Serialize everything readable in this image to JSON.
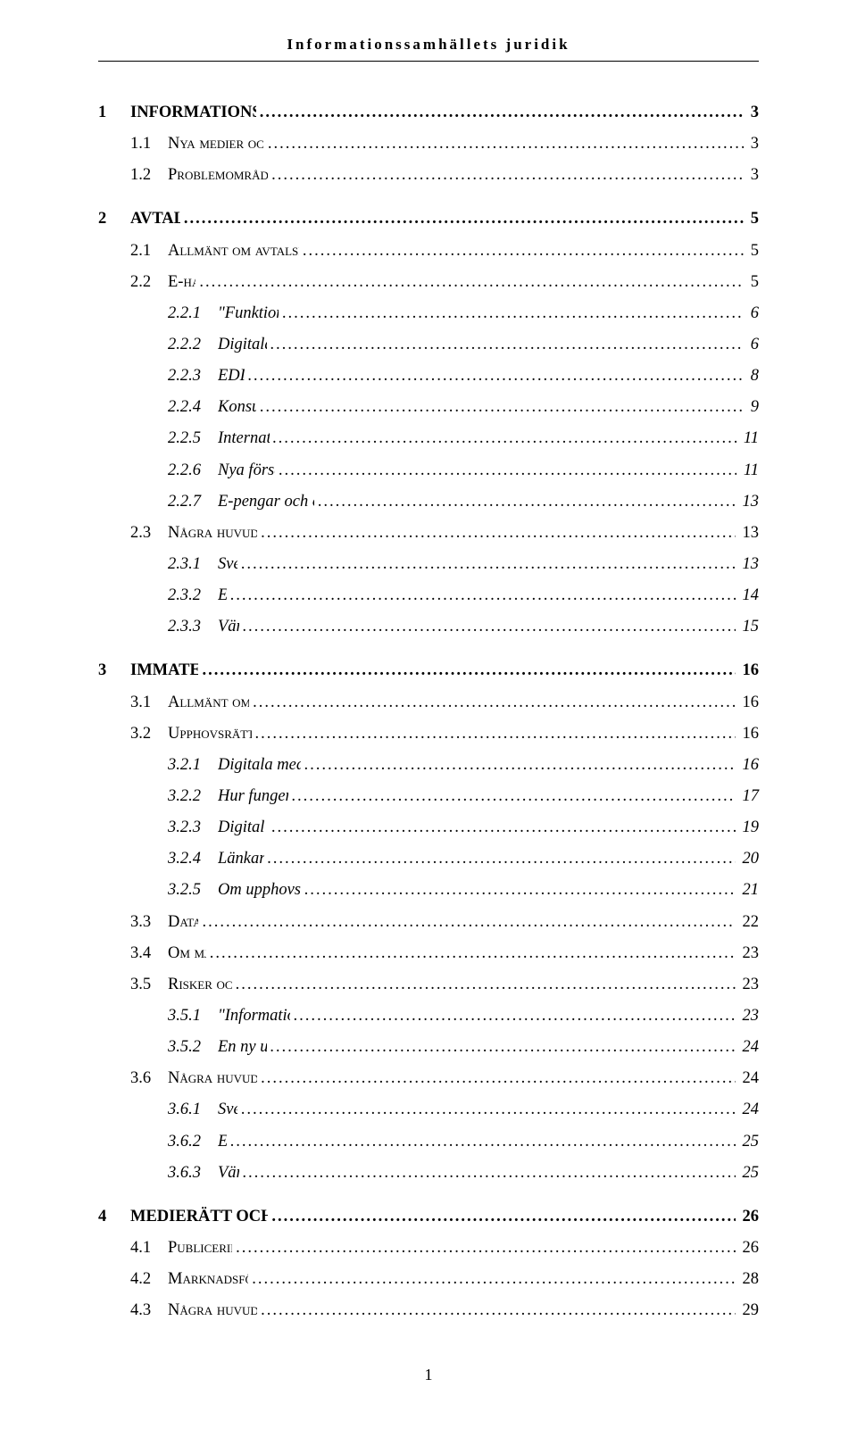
{
  "header": {
    "running_title": "Informationssamhällets juridik"
  },
  "toc": [
    {
      "level": 1,
      "num": "1",
      "label": "INFORMATIONSSAMHÄLLETS JURIDIK",
      "page": "3"
    },
    {
      "level": 2,
      "num": "1.1",
      "label": "Nya medier och nya förutsättningar",
      "page": "3"
    },
    {
      "level": 2,
      "num": "1.2",
      "label": "Problemområden och pågående arbete",
      "page": "3"
    },
    {
      "level": 1,
      "num": "2",
      "label": "AVTALSRÄTT",
      "page": "5"
    },
    {
      "level": 2,
      "num": "2.1",
      "label": "Allmänt om avtalsrätten och informationssamhället",
      "page": "5"
    },
    {
      "level": 2,
      "num": "2.2",
      "label": "E-handel",
      "page": "5"
    },
    {
      "level": 3,
      "num": "2.2.1",
      "label": "\"Funktionell ekvivalens\"",
      "page": "6"
    },
    {
      "level": 3,
      "num": "2.2.2",
      "label": "Digitala signaturer",
      "page": "6"
    },
    {
      "level": 3,
      "num": "2.2.3",
      "label": "EDI-avtal",
      "page": "8"
    },
    {
      "level": 3,
      "num": "2.2.4",
      "label": "Konsumenträtt",
      "page": "9"
    },
    {
      "level": 3,
      "num": "2.2.5",
      "label": "Internationella avtal",
      "page": "11"
    },
    {
      "level": 3,
      "num": "2.2.6",
      "label": "Nya försäljningsformer",
      "page": "11"
    },
    {
      "level": 3,
      "num": "2.2.7",
      "label": "E-pengar och elektroniska betalningsystem",
      "page": "13"
    },
    {
      "level": 2,
      "num": "2.3",
      "label": "Några huvudlinjer i utvecklingen",
      "page": "13"
    },
    {
      "level": 3,
      "num": "2.3.1",
      "label": "Sverige",
      "page": "13"
    },
    {
      "level": 3,
      "num": "2.3.2",
      "label": "EU",
      "page": "14"
    },
    {
      "level": 3,
      "num": "2.3.3",
      "label": "Världen",
      "page": "15"
    },
    {
      "level": 1,
      "num": "3",
      "label": "IMMATERIALRÄTT",
      "page": "16"
    },
    {
      "level": 2,
      "num": "3.1",
      "label": "Allmänt om Immaterialrätten",
      "page": "16"
    },
    {
      "level": 2,
      "num": "3.2",
      "label": "Upphovsrätt i globala nätverk",
      "page": "16"
    },
    {
      "level": 3,
      "num": "3.2.1",
      "label": "Digitala medier – hot och möjlighet",
      "page": "16"
    },
    {
      "level": 3,
      "num": "3.2.2",
      "label": "Hur fungerar upphovsrätten?",
      "page": "17"
    },
    {
      "level": 3,
      "num": "3.2.3",
      "label": "Digital Upphovsrätt",
      "page": "19"
    },
    {
      "level": 3,
      "num": "3.2.4",
      "label": "Länkar och ramar",
      "page": "20"
    },
    {
      "level": 3,
      "num": "3.2.5",
      "label": "Om upphovsrättsförvaltande system",
      "page": "21"
    },
    {
      "level": 2,
      "num": "3.3",
      "label": "Databaser",
      "page": "22"
    },
    {
      "level": 2,
      "num": "3.4",
      "label": "Om mjukvara",
      "page": "23"
    },
    {
      "level": 2,
      "num": "3.5",
      "label": "Risker och möjligheter",
      "page": "23"
    },
    {
      "level": 3,
      "num": "3.5.1",
      "label": "\"Information wants to be free\"",
      "page": "23"
    },
    {
      "level": 3,
      "num": "3.5.2",
      "label": "En ny upphovsrätt?",
      "page": "24"
    },
    {
      "level": 2,
      "num": "3.6",
      "label": "Några huvudlinjer i utvecklingen",
      "page": "24"
    },
    {
      "level": 3,
      "num": "3.6.1",
      "label": "Sverige",
      "page": "24"
    },
    {
      "level": 3,
      "num": "3.6.2",
      "label": "EU",
      "page": "25"
    },
    {
      "level": 3,
      "num": "3.6.3",
      "label": "Världen",
      "page": "25"
    },
    {
      "level": 1,
      "num": "4",
      "label": "MEDIERÄTT OCH MARKNADSFÖRINGSRÄTT",
      "page": "26"
    },
    {
      "level": 2,
      "num": "4.1",
      "label": "Publicering och ansvar",
      "page": "26"
    },
    {
      "level": 2,
      "num": "4.2",
      "label": "Marknadsföring och Internet",
      "page": "28"
    },
    {
      "level": 2,
      "num": "4.3",
      "label": "Några huvudlinjer i utvecklingen",
      "page": "29"
    }
  ],
  "footer": {
    "page_number": "1"
  }
}
